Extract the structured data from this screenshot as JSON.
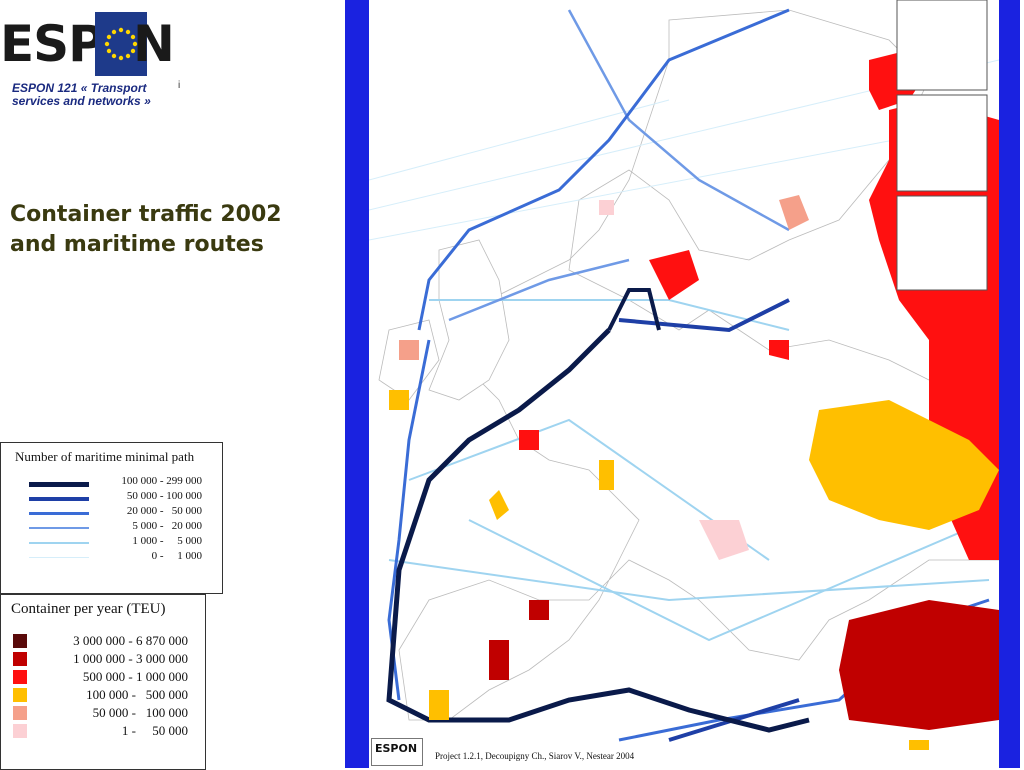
{
  "header": {
    "logo_left": "ESP",
    "logo_right": "N",
    "project": "ESPON 121 « Transport services and networks »",
    "marker": "i"
  },
  "title": "Container traffic 2002 and maritime routes",
  "legend_paths": {
    "title": "Number of maritime minimal path",
    "items": [
      {
        "label": "100 000 - 299 000",
        "color": "#0a1a4a"
      },
      {
        "label": "50 000 - 100 000",
        "color": "#1e3fa6"
      },
      {
        "label": "20 000 -   50 000",
        "color": "#3a6cd6"
      },
      {
        "label": "5 000 -   20 000",
        "color": "#6f9ae6"
      },
      {
        "label": "1 000 -     5 000",
        "color": "#9fd4f0"
      },
      {
        "label": "0 -     1 000",
        "color": "#d6eefa"
      }
    ]
  },
  "legend_teu": {
    "title": "Container per year (TEU)",
    "items": [
      {
        "label": "3 000 000 - 6 870 000",
        "color": "#5a0a0a"
      },
      {
        "label": "1 000 000 - 3 000 000",
        "color": "#c00000"
      },
      {
        "label": "500 000 - 1 000 000",
        "color": "#ff1010"
      },
      {
        "label": "100 000 -   500 000",
        "color": "#ffbf00"
      },
      {
        "label": "50 000 -   100 000",
        "color": "#f5a08a"
      },
      {
        "label": "1 -     50 000",
        "color": "#fcd0d4"
      }
    ]
  },
  "map": {
    "logo": "ESPON",
    "credit": "Project 1.2.1, Decoupigny Ch., Siarov V., Nestear 2004"
  }
}
